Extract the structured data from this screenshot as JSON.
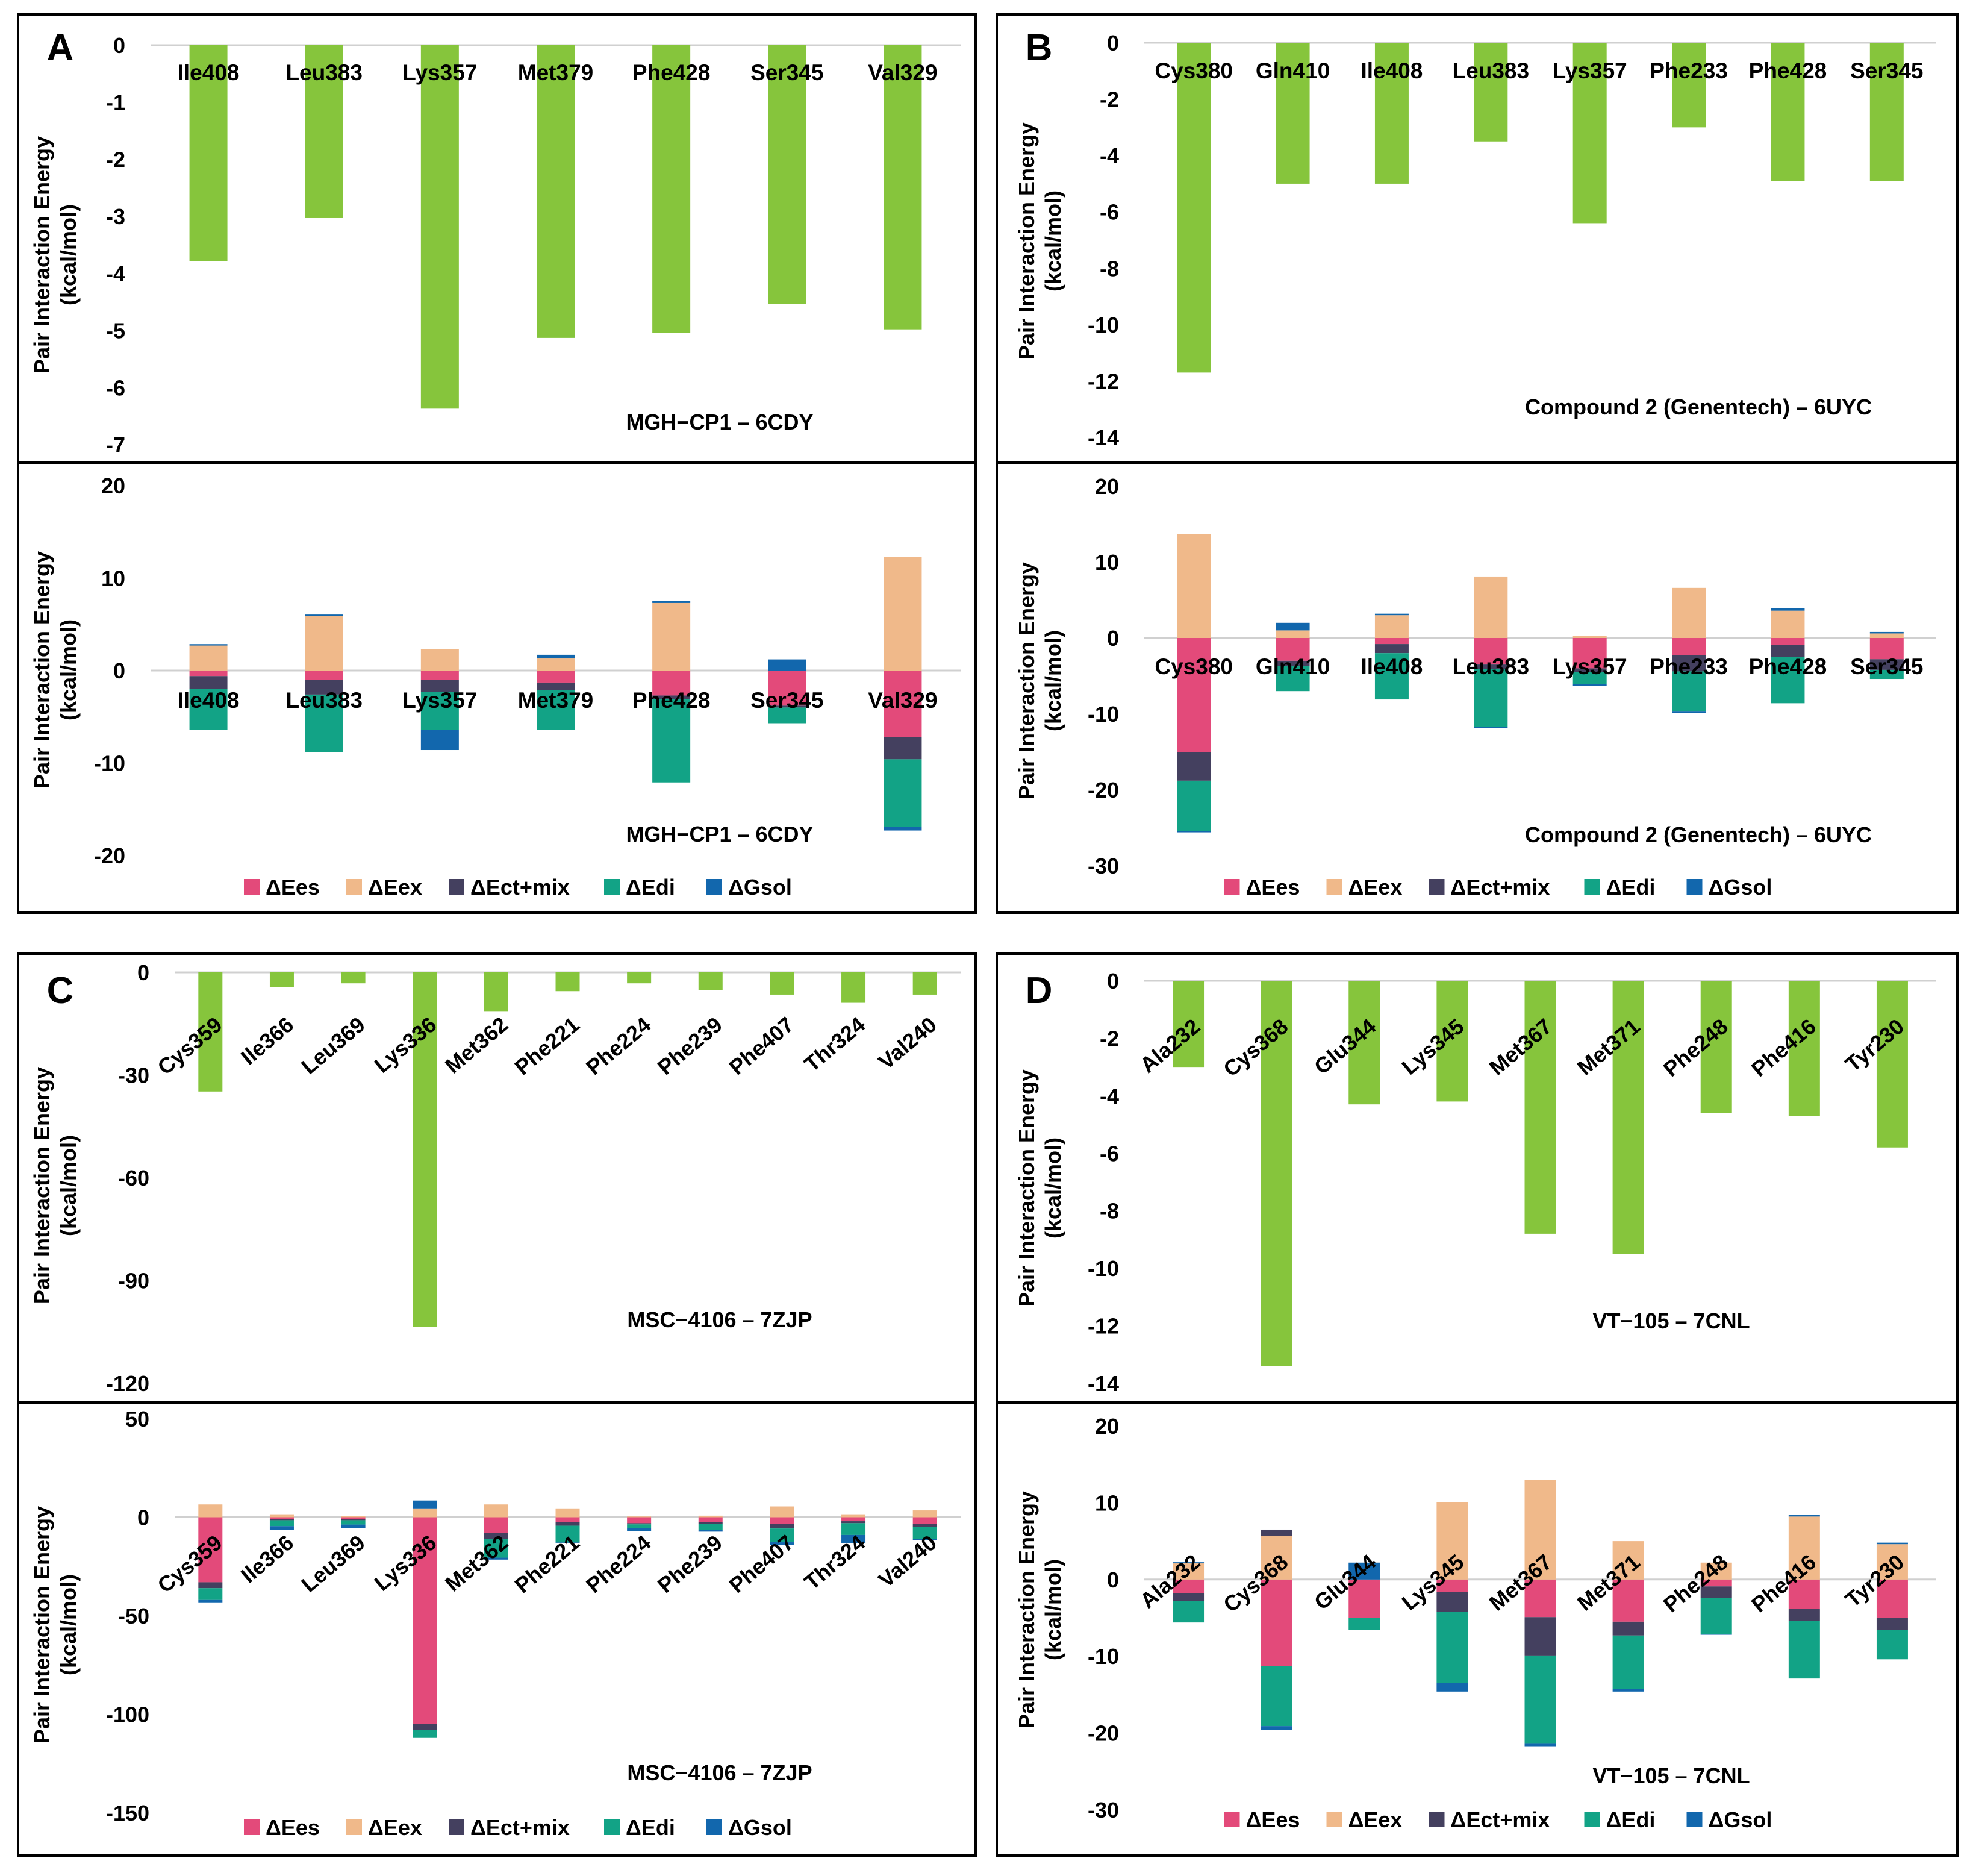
{
  "legend": [
    {
      "key": "ees",
      "label": "ΔEes",
      "color": "#e34a7a"
    },
    {
      "key": "eex",
      "label": "ΔEex",
      "color": "#f0b98a"
    },
    {
      "key": "ect",
      "label": "ΔEct+mix",
      "color": "#44405f"
    },
    {
      "key": "edi",
      "label": "ΔEdi",
      "color": "#12a386"
    },
    {
      "key": "gsol",
      "label": "ΔGsol",
      "color": "#1267ad"
    }
  ],
  "colors": {
    "total_bar": "#86c53c",
    "axis_line": "#d0d0d0",
    "frame": "#000000"
  },
  "chart_data": [
    {
      "panel": "A",
      "part": "total",
      "type": "bar",
      "title": "MGH−CP1 – 6CDY",
      "ylabel": "Pair Interaction Energy (kcal/mol)",
      "ylim": [
        -7,
        0
      ],
      "ticks": [
        0,
        -1,
        -2,
        -3,
        -4,
        -5,
        -6,
        -7
      ],
      "categories": [
        "Ile408",
        "Leu383",
        "Lys357",
        "Met379",
        "Phe428",
        "Ser345",
        "Val329"
      ],
      "values": [
        -3.78,
        -3.03,
        -6.37,
        -5.13,
        -5.04,
        -4.54,
        -4.98
      ]
    },
    {
      "panel": "A",
      "part": "decomposition",
      "type": "bar",
      "title": "MGH−CP1 – 6CDY",
      "ylabel": "Pair Interaction Energy (kcal/mol)",
      "ylim": [
        -20,
        20
      ],
      "ticks": [
        20,
        10,
        0,
        -10,
        -20
      ],
      "categories": [
        "Ile408",
        "Leu383",
        "Lys357",
        "Met379",
        "Phe428",
        "Ser345",
        "Val329"
      ],
      "series": [
        {
          "name": "ΔEes",
          "values": [
            -0.6,
            -1.0,
            -1.0,
            -1.3,
            -2.7,
            -3.8,
            -7.2
          ]
        },
        {
          "name": "ΔEex",
          "values": [
            2.7,
            5.9,
            2.3,
            1.3,
            7.3,
            0,
            12.3
          ]
        },
        {
          "name": "ΔEct+mix",
          "values": [
            -1.4,
            -1.6,
            -1.3,
            -0.8,
            -0.4,
            -0.2,
            -2.4
          ]
        },
        {
          "name": "ΔEdi",
          "values": [
            -4.4,
            -6.2,
            -4.1,
            -4.3,
            -9.0,
            -1.7,
            -7.3
          ]
        },
        {
          "name": "ΔGsol",
          "values": [
            0.15,
            0.15,
            -2.2,
            0.4,
            0.2,
            1.2,
            -0.4
          ]
        }
      ]
    },
    {
      "panel": "B",
      "part": "total",
      "type": "bar",
      "title": "Compound 2 (Genentech) – 6UYC",
      "ylabel": "Pair Interaction Energy (kcal/mol)",
      "ylim": [
        -14,
        0
      ],
      "ticks": [
        0,
        -2,
        -4,
        -6,
        -8,
        -10,
        -12,
        -14
      ],
      "categories": [
        "Cys380",
        "Gln410",
        "Ile408",
        "Leu383",
        "Lys357",
        "Phe233",
        "Phe428",
        "Ser345"
      ],
      "values": [
        -11.7,
        -5.0,
        -5.0,
        -3.5,
        -6.4,
        -3.0,
        -4.9,
        -4.9
      ]
    },
    {
      "panel": "B",
      "part": "decomposition",
      "type": "bar",
      "title": "Compound 2 (Genentech) – 6UYC",
      "ylabel": "Pair Interaction Energy (kcal/mol)",
      "ylim": [
        -30,
        20
      ],
      "ticks": [
        20,
        10,
        0,
        -10,
        -20,
        -30
      ],
      "categories": [
        "Cys380",
        "Gln410",
        "Ile408",
        "Leu383",
        "Lys357",
        "Phe233",
        "Phe428",
        "Ser345"
      ],
      "series": [
        {
          "name": "ΔEes",
          "values": [
            -15.0,
            -3.0,
            -0.8,
            -3.5,
            -4.0,
            -2.3,
            -0.9,
            -2.8
          ]
        },
        {
          "name": "ΔEex",
          "values": [
            13.7,
            1.0,
            3.0,
            8.1,
            0.3,
            6.6,
            3.6,
            0.6
          ]
        },
        {
          "name": "ΔEct+mix",
          "values": [
            -3.8,
            -0.7,
            -1.2,
            -0.6,
            -0.5,
            -2.1,
            -1.6,
            -1.4
          ]
        },
        {
          "name": "ΔEdi",
          "values": [
            -6.6,
            -3.3,
            -6.1,
            -7.6,
            -1.6,
            -5.3,
            -6.1,
            -1.2
          ]
        },
        {
          "name": "ΔGsol",
          "values": [
            -0.2,
            1.0,
            0.2,
            -0.2,
            -0.2,
            -0.2,
            0.3,
            0.2
          ]
        }
      ]
    },
    {
      "panel": "C",
      "part": "total",
      "type": "bar",
      "title": "MSC−4106 – 7ZJP",
      "ylabel": "Pair Interaction Energy (kcal/mol)",
      "ylim": [
        -120,
        0
      ],
      "ticks": [
        0,
        -30,
        -60,
        -90,
        -120
      ],
      "categories": [
        "Cys359",
        "Ile366",
        "Leu369",
        "Lys336",
        "Met362",
        "Phe221",
        "Phe224",
        "Phe239",
        "Phe407",
        "Thr324",
        "Val240"
      ],
      "values": [
        -34.8,
        -4.3,
        -3.2,
        -103.5,
        -11.5,
        -5.5,
        -3.2,
        -5.2,
        -6.5,
        -8.9,
        -6.5
      ]
    },
    {
      "panel": "C",
      "part": "decomposition",
      "type": "bar",
      "title": "MSC−4106 – 7ZJP",
      "ylabel": "Pair Interaction Energy (kcal/mol)",
      "ylim": [
        -150,
        50
      ],
      "ticks": [
        50,
        0,
        -50,
        -100,
        -150
      ],
      "categories": [
        "Cys359",
        "Ile366",
        "Leu369",
        "Lys336",
        "Met362",
        "Phe221",
        "Phe224",
        "Phe239",
        "Phe407",
        "Thr324",
        "Val240"
      ],
      "series": [
        {
          "name": "ΔEes",
          "values": [
            -33.0,
            -0.9,
            -1.0,
            -105.0,
            -8.0,
            -2.5,
            -3.0,
            -2.5,
            -3.5,
            -2.0,
            -3.5
          ]
        },
        {
          "name": "ΔEex",
          "values": [
            6.5,
            1.5,
            0.6,
            4.5,
            6.5,
            4.5,
            0.4,
            0.8,
            5.5,
            1.5,
            3.5
          ]
        },
        {
          "name": "ΔEct+mix",
          "values": [
            -3.0,
            -0.6,
            -0.5,
            -3.0,
            -3.0,
            -1.8,
            -0.6,
            -0.8,
            -2.2,
            -1.0,
            -1.5
          ]
        },
        {
          "name": "ΔEdi",
          "values": [
            -6.0,
            -3.0,
            -2.2,
            -4.0,
            -9.5,
            -8.5,
            -1.8,
            -3.0,
            -7.0,
            -6.0,
            -6.0
          ]
        },
        {
          "name": "ΔGsol",
          "values": [
            -1.5,
            -2.0,
            -1.8,
            4.0,
            -1.0,
            -0.5,
            -1.5,
            -1.0,
            -1.5,
            -4.0,
            -0.5
          ]
        }
      ]
    },
    {
      "panel": "D",
      "part": "total",
      "type": "bar",
      "title": "VT−105 – 7CNL",
      "ylabel": "Pair Interaction Energy (kcal/mol)",
      "ylim": [
        -14,
        0
      ],
      "ticks": [
        0,
        -2,
        -4,
        -6,
        -8,
        -10,
        -12,
        -14
      ],
      "categories": [
        "Ala232",
        "Cys368",
        "Glu344",
        "Lys345",
        "Met367",
        "Met371",
        "Phe248",
        "Phe416",
        "Tyr230"
      ],
      "values": [
        -3.0,
        -13.4,
        -4.3,
        -4.2,
        -8.8,
        -9.5,
        -4.6,
        -4.7,
        -5.8
      ]
    },
    {
      "panel": "D",
      "part": "decomposition",
      "type": "bar",
      "title": "VT−105 – 7CNL",
      "ylabel": "Pair Interaction Energy (kcal/mol)",
      "ylim": [
        -30,
        20
      ],
      "ticks": [
        20,
        10,
        0,
        -10,
        -20,
        -30
      ],
      "categories": [
        "Ala232",
        "Cys368",
        "Glu344",
        "Lys345",
        "Met367",
        "Met371",
        "Phe248",
        "Phe416",
        "Tyr230"
      ],
      "series": [
        {
          "name": "ΔEes",
          "values": [
            -1.8,
            -11.3,
            -5.0,
            -1.6,
            -4.9,
            -5.5,
            -0.9,
            -3.8,
            -5.0
          ]
        },
        {
          "name": "ΔEex",
          "values": [
            2.1,
            5.7,
            0,
            10.1,
            13.0,
            5.0,
            2.2,
            8.2,
            4.6
          ]
        },
        {
          "name": "ΔEct+mix",
          "values": [
            -1.0,
            0.8,
            0,
            -2.6,
            -5.0,
            -1.8,
            -1.5,
            -1.6,
            -1.6
          ]
        },
        {
          "name": "ΔEdi",
          "values": [
            -2.8,
            -7.8,
            -1.6,
            -9.3,
            -11.5,
            -7.0,
            -4.7,
            -7.5,
            -3.8
          ]
        },
        {
          "name": "ΔGsol",
          "values": [
            0.15,
            -0.5,
            2.2,
            -1.1,
            -0.4,
            -0.3,
            -0.1,
            0.2,
            0.2
          ]
        }
      ]
    }
  ]
}
